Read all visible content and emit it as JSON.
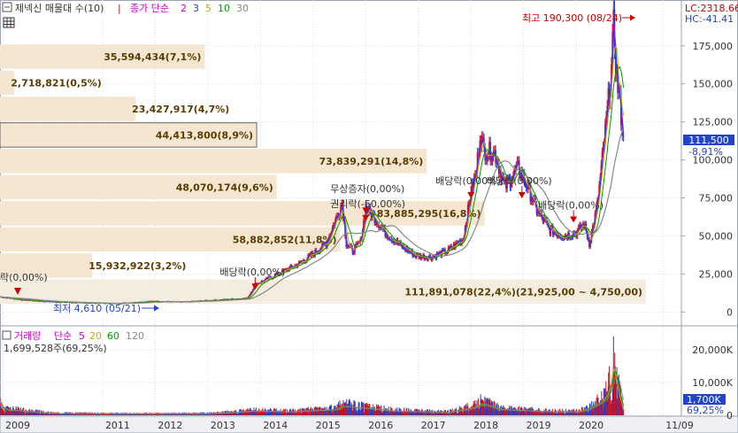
{
  "header": {
    "title": "제넥신 매물대 수(10)",
    "ma_label": "종가 단순",
    "ma_periods": [
      "2",
      "3",
      "5",
      "10",
      "30"
    ],
    "ma_colors": [
      "#cc00cc",
      "#2244cc",
      "#ccaa00",
      "#009900",
      "#888888"
    ],
    "lc": "LC:2318.66",
    "hc": "HC:-41.41"
  },
  "volume_header": {
    "title": "거래량",
    "ma_label": "단순",
    "ma_periods": [
      "5",
      "20",
      "60",
      "120"
    ],
    "ma_colors": [
      "#cc00cc",
      "#ccaa00",
      "#009900",
      "#888888"
    ],
    "last_volume": "1,699,528주(69,25%)"
  },
  "current": {
    "price_label": "111,500",
    "change_label": "-8,91%",
    "volume_label": "1,700K",
    "volume_pct_label": "69,25%"
  },
  "annotations": {
    "high": "최고 190,300 (08/24)",
    "low": "최저 4,610 (05/21)",
    "events": [
      {
        "text": "배당락(0,00%)",
        "date": 2013.85,
        "price": 17000
      },
      {
        "text": "무상증자(0,00%)",
        "date": 2015.95,
        "price": 67000
      },
      {
        "text": "권리락(-50,00%)",
        "date": 2015.95,
        "price": 62000
      },
      {
        "text": "배당락(0,00%)",
        "date": 2017.95,
        "price": 77000
      },
      {
        "text": "배당락(0,00%)",
        "date": 2018.92,
        "price": 77000
      },
      {
        "text": "배당락(0,00%)",
        "date": 2019.9,
        "price": 61000
      }
    ],
    "left_edge_text": "락(0,00%)"
  },
  "chart_data": {
    "type": "candlestick_with_volume_profile",
    "x_ticks": [
      "2009",
      "2011",
      "2012",
      "2013",
      "2014",
      "2015",
      "2016",
      "2017",
      "2018",
      "2019",
      "2020",
      "11/09"
    ],
    "x_tick_pos": [
      2009.05,
      2010.95,
      2011.95,
      2012.95,
      2013.95,
      2014.95,
      2015.95,
      2016.95,
      2017.95,
      2018.95,
      2019.95,
      2021.6
    ],
    "x_range": [
      2009.0,
      2021.95
    ],
    "price_ticks": [
      "175,000",
      "150,000",
      "125,000",
      "100,000",
      "75,000",
      "50,000",
      "25,000",
      "0"
    ],
    "price_tick_values": [
      175000,
      150000,
      125000,
      100000,
      75000,
      50000,
      25000,
      0
    ],
    "price_range": [
      -8000,
      197000
    ],
    "volume_ticks": [
      "20,000K",
      "10,000K",
      "0"
    ],
    "volume_tick_values": [
      20000,
      10000,
      0
    ],
    "volume_range": [
      0,
      24000
    ],
    "price_series": {
      "dates": [
        2009.0,
        2009.4,
        2009.8,
        2010.5,
        2011.2,
        2011.9,
        2012.5,
        2013.2,
        2013.7,
        2013.85,
        2014.05,
        2014.4,
        2014.7,
        2014.95,
        2015.2,
        2015.45,
        2015.5,
        2015.58,
        2015.7,
        2015.85,
        2015.95,
        2016.1,
        2016.3,
        2016.6,
        2016.9,
        2017.2,
        2017.5,
        2017.8,
        2017.95,
        2018.05,
        2018.12,
        2018.2,
        2018.4,
        2018.6,
        2018.85,
        2019.0,
        2019.2,
        2019.45,
        2019.7,
        2019.95,
        2020.1,
        2020.2,
        2020.35,
        2020.5,
        2020.62,
        2020.66,
        2020.72,
        2020.78,
        2020.85
      ],
      "close": [
        10000,
        8000,
        7000,
        6000,
        5500,
        7000,
        6500,
        8000,
        9000,
        18000,
        21000,
        27000,
        32000,
        38000,
        45000,
        67000,
        72000,
        45000,
        40000,
        46000,
        68000,
        63000,
        53000,
        44000,
        37000,
        36000,
        40000,
        48000,
        78000,
        92000,
        118000,
        106000,
        105000,
        82000,
        95000,
        84000,
        67000,
        54000,
        50000,
        52000,
        58000,
        45000,
        70000,
        118000,
        160000,
        188000,
        153000,
        138000,
        111500
      ]
    },
    "volume_profile": [
      {
        "label": "111,891,078(22,4%)(21,925,00 ~ 4,750,00)",
        "low": 4750,
        "high": 21925,
        "pct": 22.4
      },
      {
        "label": "15,932,922(3,2%)",
        "low": 21925,
        "high": 39100,
        "pct": 3.2
      },
      {
        "label": "58,882,852(11,8%)",
        "low": 39100,
        "high": 56275,
        "pct": 11.8
      },
      {
        "label": "83,885,295(16,8%)",
        "low": 56275,
        "high": 73450,
        "pct": 16.8
      },
      {
        "label": "48,070,174(9,6%)",
        "low": 73450,
        "high": 90625,
        "pct": 9.6
      },
      {
        "label": "73,839,291(14,8%)",
        "low": 90625,
        "high": 107800,
        "pct": 14.8
      },
      {
        "label": "44,413,800(8,9%)",
        "low": 107800,
        "high": 124975,
        "pct": 8.9
      },
      {
        "label": "23,427,917(4,7%)",
        "low": 124975,
        "high": 142150,
        "pct": 4.7
      },
      {
        "label": "2,718,821(0,5%)",
        "low": 142150,
        "high": 159325,
        "pct": 0.5
      },
      {
        "label": "35,594,434(7,1%)",
        "low": 159325,
        "high": 176500,
        "pct": 7.1
      }
    ],
    "volume_series": {
      "dates": [
        2009.0,
        2009.05,
        2010.0,
        2011.5,
        2013.0,
        2013.85,
        2014.5,
        2015.4,
        2015.5,
        2015.95,
        2016.5,
        2017.5,
        2018.05,
        2018.15,
        2018.5,
        2019.0,
        2019.5,
        2020.0,
        2020.2,
        2020.45,
        2020.55,
        2020.62,
        2020.66,
        2020.7,
        2020.78,
        2020.85
      ],
      "values": [
        5500,
        2500,
        800,
        600,
        700,
        1800,
        1500,
        2500,
        4000,
        3000,
        1800,
        1200,
        3500,
        5000,
        2500,
        2000,
        1500,
        1500,
        3000,
        6000,
        9000,
        14000,
        21000,
        17000,
        8000,
        1700
      ]
    }
  }
}
